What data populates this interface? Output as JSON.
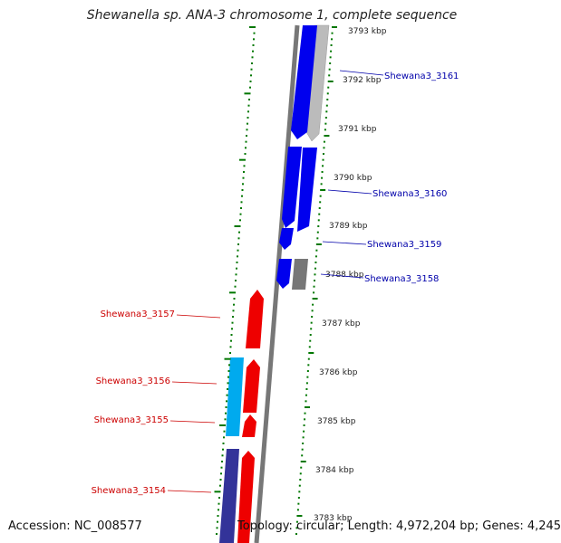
{
  "title": "Shewanella sp. ANA-3 chromosome 1, complete sequence",
  "accession": "Accession: NC_008577",
  "summary": "Topology: circular; Length: 4,972,204 bp; Genes: 4,245",
  "colors": {
    "forward_strand": "#ee0000",
    "reverse_strand": "#0000ee",
    "forward_strand_light": "#00aaee",
    "forward_strand_dark": "#333399",
    "reverse_strand_light": "#bbbbbb",
    "reverse_strand_dark": "#777777",
    "backbone": "#888888",
    "gc_ticks": "#007700",
    "label_forward": "#cc0000",
    "label_reverse": "#0000aa"
  },
  "kbp_ticks": [
    "3793 kbp",
    "3792 kbp",
    "3791 kbp",
    "3790 kbp",
    "3789 kbp",
    "3788 kbp",
    "3787 kbp",
    "3786 kbp",
    "3785 kbp",
    "3784 kbp",
    "3783 kbp"
  ],
  "gene_labels": {
    "reverse": [
      "Shewana3_3161",
      "Shewana3_3160",
      "Shewana3_3159",
      "Shewana3_3158"
    ],
    "forward": [
      "Shewana3_3157",
      "Shewana3_3156",
      "Shewana3_3155",
      "Shewana3_3154"
    ]
  }
}
